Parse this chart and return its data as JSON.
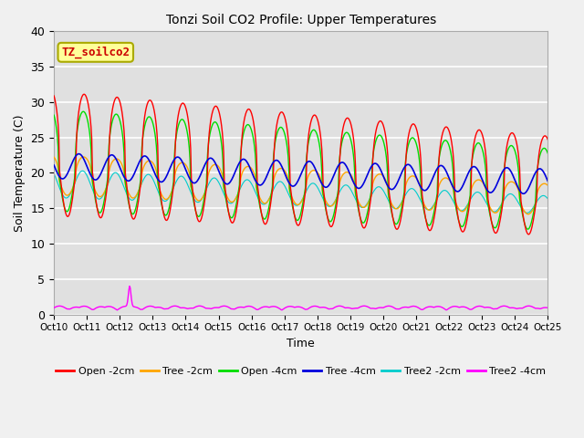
{
  "title": "Tonzi Soil CO2 Profile: Upper Temperatures",
  "xlabel": "Time",
  "ylabel": "Soil Temperature (C)",
  "ylim": [
    0,
    40
  ],
  "xlim_days": [
    0,
    15
  ],
  "annotation": "TZ_soilco2",
  "xtick_labels": [
    "Oct 10",
    "Oct 11",
    "Oct 12",
    "Oct 13",
    "Oct 14",
    "Oct 15",
    "Oct 16",
    "Oct 17",
    "Oct 18",
    "Oct 19",
    "Oct 20",
    "Oct 21",
    "Oct 22",
    "Oct 23",
    "Oct 24",
    "Oct 25"
  ],
  "colors": {
    "Open-2cm": "#ff0000",
    "Tree-2cm": "#ffa500",
    "Open-4cm": "#00dd00",
    "Tree-4cm": "#0000dd",
    "Tree2-2cm": "#00cccc",
    "Tree2-4cm": "#ff00ff"
  },
  "bg_color": "#e0e0e0",
  "fig_color": "#f0f0f0",
  "annotation_bg": "#ffff99",
  "annotation_border": "#aaaa00",
  "figsize": [
    6.4,
    4.8
  ],
  "dpi": 100
}
